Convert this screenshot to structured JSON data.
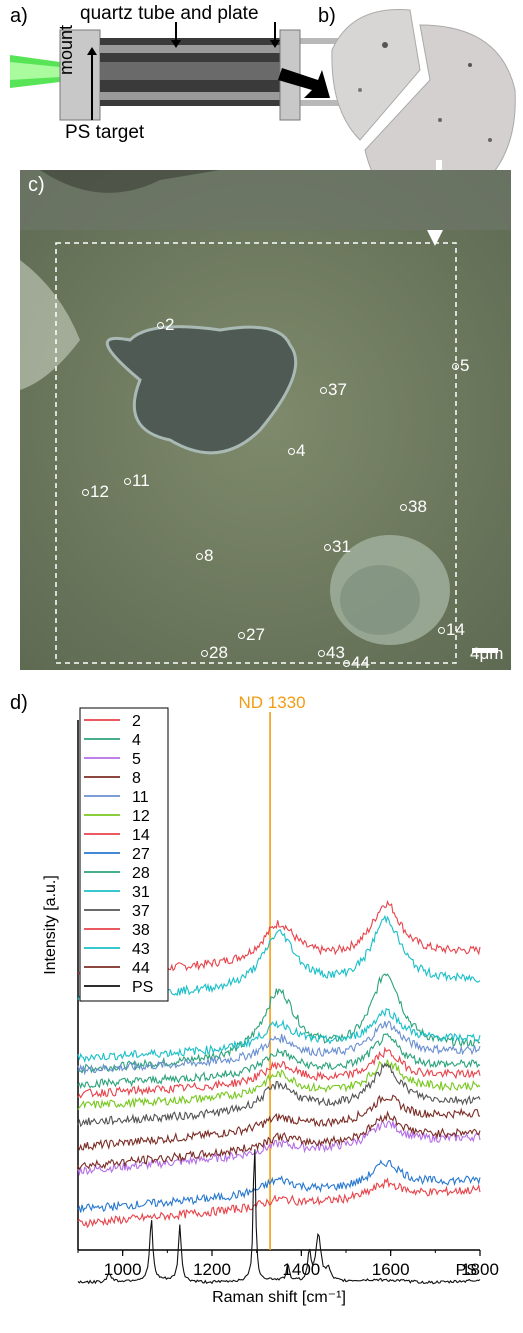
{
  "panel_labels": {
    "a": "a)",
    "b": "b)",
    "c": "c)",
    "d": "d)"
  },
  "setup": {
    "tube_label": "quartz tube and plate",
    "mount_label": "mount",
    "target_label": "PS target"
  },
  "micrograph": {
    "scale_label": "4μm",
    "points": [
      {
        "id": "2",
        "label": "2"
      },
      {
        "id": "37",
        "label": "37"
      },
      {
        "id": "5",
        "label": "5"
      },
      {
        "id": "4",
        "label": "4"
      },
      {
        "id": "11",
        "label": "11"
      },
      {
        "id": "12",
        "label": "12"
      },
      {
        "id": "38",
        "label": "38"
      },
      {
        "id": "8",
        "label": "8"
      },
      {
        "id": "31",
        "label": "31"
      },
      {
        "id": "27",
        "label": "27"
      },
      {
        "id": "28",
        "label": "28"
      },
      {
        "id": "43",
        "label": "43"
      },
      {
        "id": "44",
        "label": "44"
      },
      {
        "id": "14",
        "label": "14"
      }
    ]
  },
  "chart_data": {
    "type": "line",
    "xlabel": "Raman shift [cm⁻¹]",
    "ylabel": "Intensity [a.u.]",
    "xlim": [
      900,
      1800
    ],
    "xticks": [
      1000,
      1200,
      1400,
      1600,
      1800
    ],
    "reference_line": {
      "x": 1330,
      "label": "ND 1330",
      "color": "#f39c12"
    },
    "series": [
      {
        "name": "2",
        "color": "#e8434a",
        "offset": 9.0,
        "d_amp": 1.6,
        "g_amp": 2.2,
        "slope": 0.9
      },
      {
        "name": "4",
        "color": "#2ca37a",
        "offset": 5.0,
        "d_amp": 2.7,
        "g_amp": 3.2,
        "slope": 1.0
      },
      {
        "name": "5",
        "color": "#b46ee6",
        "offset": 0.8,
        "d_amp": 0.4,
        "g_amp": 0.9,
        "slope": 1.4
      },
      {
        "name": "8",
        "color": "#7b2d26",
        "offset": 1.8,
        "d_amp": 0.5,
        "g_amp": 1.0,
        "slope": 1.4
      },
      {
        "name": "11",
        "color": "#6a8fd0",
        "offset": 5.0,
        "d_amp": 0.9,
        "g_amp": 1.3,
        "slope": 0.8
      },
      {
        "name": "12",
        "color": "#78c820",
        "offset": 3.5,
        "d_amp": 0.9,
        "g_amp": 1.2,
        "slope": 0.8
      },
      {
        "name": "14",
        "color": "#e8434a",
        "offset": -1.4,
        "d_amp": 0.3,
        "g_amp": 0.6,
        "slope": 1.4
      },
      {
        "name": "27",
        "color": "#2878d0",
        "offset": -0.8,
        "d_amp": 0.6,
        "g_amp": 1.0,
        "slope": 1.2
      },
      {
        "name": "28",
        "color": "#2ca37a",
        "offset": 4.4,
        "d_amp": 0.9,
        "g_amp": 1.3,
        "slope": 0.8
      },
      {
        "name": "31",
        "color": "#19bfc8",
        "offset": 5.5,
        "d_amp": 1.0,
        "g_amp": 1.3,
        "slope": 0.8
      },
      {
        "name": "37",
        "color": "#555555",
        "offset": 2.8,
        "d_amp": 1.1,
        "g_amp": 1.6,
        "slope": 0.9
      },
      {
        "name": "38",
        "color": "#e8434a",
        "offset": 4.0,
        "d_amp": 0.8,
        "g_amp": 1.1,
        "slope": 0.8
      },
      {
        "name": "43",
        "color": "#19bfc8",
        "offset": 8.0,
        "d_amp": 2.3,
        "g_amp": 2.7,
        "slope": 0.7
      },
      {
        "name": "44",
        "color": "#7b2d26",
        "offset": 1.0,
        "d_amp": 0.5,
        "g_amp": 1.0,
        "slope": 1.4
      },
      {
        "name": "PS",
        "color": "#111111",
        "offset": -3.8,
        "ps": true
      }
    ],
    "ps_label": "PS",
    "grid": false,
    "legend_placement": "top-left"
  }
}
